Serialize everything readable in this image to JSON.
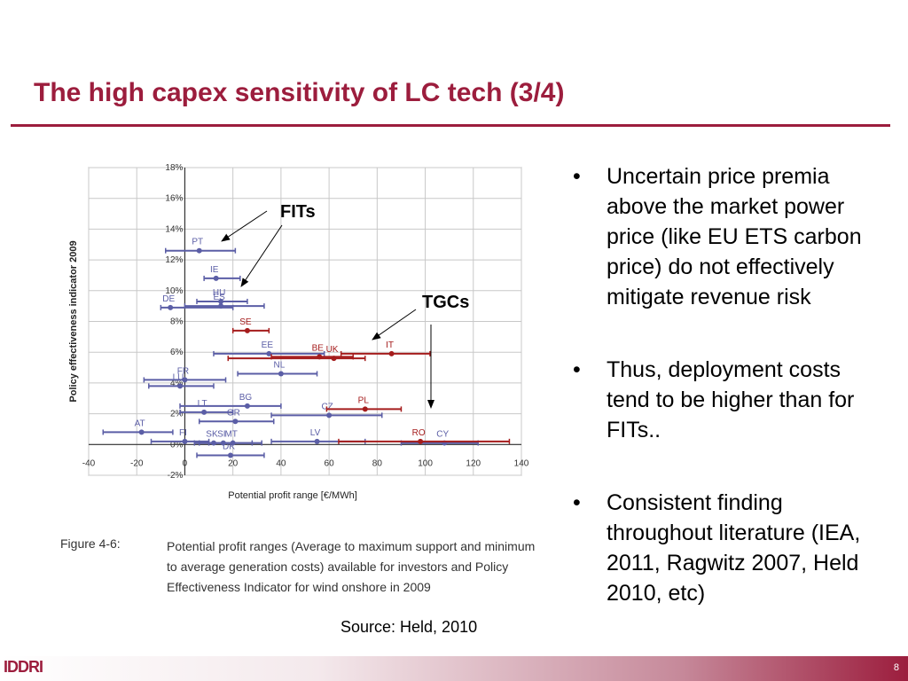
{
  "slide": {
    "title": "The high capex sensitivity of LC tech (3/4)",
    "page_number": "8",
    "logo_text": "IDDRI"
  },
  "figure": {
    "label": "Figure 4-6:",
    "caption": "Potential profit ranges (Average to maximum support and minimum to average generation costs) available for investors and Policy Effectiveness Indicator for wind onshore in 2009",
    "source": "Source: Held, 2010"
  },
  "annotations": {
    "fits": "FITs",
    "tgcs": "TGCs"
  },
  "bullets": [
    "Uncertain price premia above the market power price (like EU ETS carbon price) do not effectively mitigate revenue risk",
    "Thus, deployment costs tend to be higher than for FITs..",
    "Consistent finding throughout literature (IEA, 2011, Ragwitz 2007, Held 2010, etc)"
  ],
  "colors": {
    "accent": "#9c1d3d",
    "fit_series": "#5b5ea6",
    "tgc_series": "#a51c1c",
    "grid": "#c8c8c8"
  },
  "chart_data": {
    "type": "scatter",
    "xlabel": "Potential profit range [€/MWh]",
    "ylabel": "Policy effectiveness indicator 2009",
    "xlim": [
      -40,
      140
    ],
    "ylim": [
      -2,
      18
    ],
    "x_ticks": [
      "-40",
      "-20",
      "0",
      "20",
      "40",
      "60",
      "80",
      "100",
      "120",
      "140"
    ],
    "y_ticks": [
      "-2%",
      "0%",
      "2%",
      "4%",
      "6%",
      "8%",
      "10%",
      "12%",
      "14%",
      "16%",
      "18%"
    ],
    "grid": true,
    "series": [
      {
        "name": "FITs",
        "points": [
          {
            "label": "PT",
            "x": 6,
            "y": 12.6,
            "lo": -8,
            "hi": 21
          },
          {
            "label": "IE",
            "x": 13,
            "y": 10.8,
            "lo": 8,
            "hi": 23
          },
          {
            "label": "HU",
            "x": 15,
            "y": 9.3,
            "lo": 5,
            "hi": 26
          },
          {
            "label": "ES",
            "x": 15,
            "y": 9.0,
            "lo": 0,
            "hi": 33
          },
          {
            "label": "DE",
            "x": -6,
            "y": 8.9,
            "lo": -10,
            "hi": 20
          },
          {
            "label": "FR",
            "x": 0,
            "y": 4.2,
            "lo": -17,
            "hi": 17
          },
          {
            "label": "LU",
            "x": -2,
            "y": 3.8,
            "lo": -15,
            "hi": 12
          },
          {
            "label": "BG",
            "x": 26,
            "y": 2.5,
            "lo": -2,
            "hi": 40
          },
          {
            "label": "LT",
            "x": 8,
            "y": 2.1,
            "lo": -2,
            "hi": 20
          },
          {
            "label": "GR",
            "x": 21,
            "y": 1.5,
            "lo": 6,
            "hi": 37
          },
          {
            "label": "AT",
            "x": -18,
            "y": 0.8,
            "lo": -34,
            "hi": -5
          },
          {
            "label": "FI",
            "x": 0,
            "y": 0.2,
            "lo": -14,
            "hi": 10
          },
          {
            "label": "SK",
            "x": 12,
            "y": 0.1,
            "lo": 4,
            "hi": 20
          },
          {
            "label": "SI",
            "x": 16,
            "y": 0.1,
            "lo": 6,
            "hi": 28
          },
          {
            "label": "MT",
            "x": 20,
            "y": 0.1,
            "lo": 10,
            "hi": 32
          },
          {
            "label": "DK",
            "x": 19,
            "y": -0.7,
            "lo": 5,
            "hi": 33
          },
          {
            "label": "NL",
            "x": 40,
            "y": 4.6,
            "lo": 22,
            "hi": 55
          },
          {
            "label": "EE",
            "x": 35,
            "y": 5.9,
            "lo": 12,
            "hi": 58
          },
          {
            "label": "LV",
            "x": 55,
            "y": 0.2,
            "lo": 36,
            "hi": 75
          },
          {
            "label": "CZ",
            "x": 60,
            "y": 1.9,
            "lo": 36,
            "hi": 82
          },
          {
            "label": "CY",
            "x": 108,
            "y": 0.1,
            "lo": 90,
            "hi": 122
          }
        ]
      },
      {
        "name": "TGCs",
        "points": [
          {
            "label": "SE",
            "x": 26,
            "y": 7.4,
            "lo": 20,
            "hi": 35
          },
          {
            "label": "BE",
            "x": 56,
            "y": 5.7,
            "lo": 36,
            "hi": 70
          },
          {
            "label": "UK",
            "x": 62,
            "y": 5.6,
            "lo": 18,
            "hi": 75
          },
          {
            "label": "IT",
            "x": 86,
            "y": 5.9,
            "lo": 65,
            "hi": 102
          },
          {
            "label": "PL",
            "x": 75,
            "y": 2.3,
            "lo": 59,
            "hi": 90
          },
          {
            "label": "RO",
            "x": 98,
            "y": 0.2,
            "lo": 64,
            "hi": 135
          }
        ]
      }
    ]
  }
}
